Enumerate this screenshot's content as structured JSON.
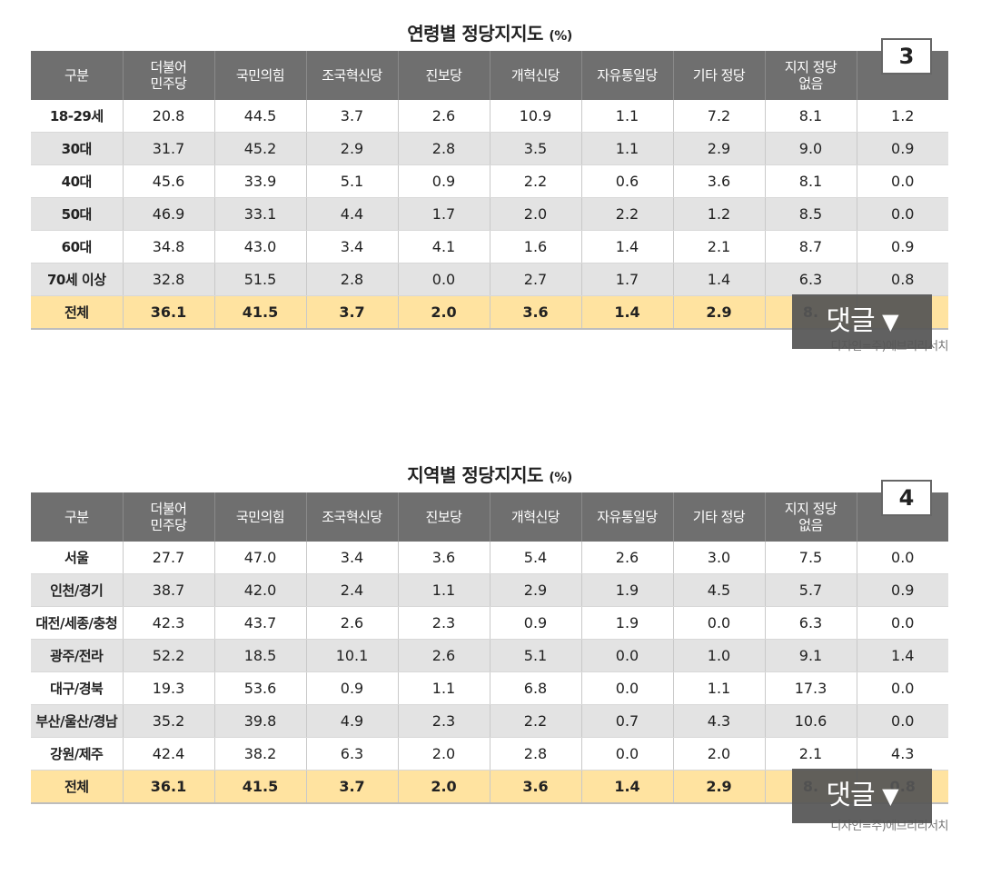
{
  "tables": [
    {
      "title": "연령별 정당지지도",
      "unit": "(%)",
      "badge": "3",
      "headers": [
        "구분",
        "더불어\n민주당",
        "국민의힘",
        "조국혁신당",
        "진보당",
        "개혁신당",
        "자유통일당",
        "기타 정당",
        "지지 정당\n없음",
        ""
      ],
      "rows": [
        [
          "18-29세",
          "20.8",
          "44.5",
          "3.7",
          "2.6",
          "10.9",
          "1.1",
          "7.2",
          "8.1",
          "1.2"
        ],
        [
          "30대",
          "31.7",
          "45.2",
          "2.9",
          "2.8",
          "3.5",
          "1.1",
          "2.9",
          "9.0",
          "0.9"
        ],
        [
          "40대",
          "45.6",
          "33.9",
          "5.1",
          "0.9",
          "2.2",
          "0.6",
          "3.6",
          "8.1",
          "0.0"
        ],
        [
          "50대",
          "46.9",
          "33.1",
          "4.4",
          "1.7",
          "2.0",
          "2.2",
          "1.2",
          "8.5",
          "0.0"
        ],
        [
          "60대",
          "34.8",
          "43.0",
          "3.4",
          "4.1",
          "1.6",
          "1.4",
          "2.1",
          "8.7",
          "0.9"
        ],
        [
          "70세 이상",
          "32.8",
          "51.5",
          "2.8",
          "0.0",
          "2.7",
          "1.7",
          "1.4",
          "6.3",
          "0.8"
        ]
      ],
      "total": [
        "전체",
        "36.1",
        "41.5",
        "3.7",
        "2.0",
        "3.6",
        "1.4",
        "2.9",
        "8.",
        ""
      ],
      "credit": "디자인=주)에브리리서치"
    },
    {
      "title": "지역별 정당지지도",
      "unit": "(%)",
      "badge": "4",
      "headers": [
        "구분",
        "더불어\n민주당",
        "국민의힘",
        "조국혁신당",
        "진보당",
        "개혁신당",
        "자유통일당",
        "기타 정당",
        "지지 정당\n없음",
        ""
      ],
      "rows": [
        [
          "서울",
          "27.7",
          "47.0",
          "3.4",
          "3.6",
          "5.4",
          "2.6",
          "3.0",
          "7.5",
          "0.0"
        ],
        [
          "인천/경기",
          "38.7",
          "42.0",
          "2.4",
          "1.1",
          "2.9",
          "1.9",
          "4.5",
          "5.7",
          "0.9"
        ],
        [
          "대전/세종/충청",
          "42.3",
          "43.7",
          "2.6",
          "2.3",
          "0.9",
          "1.9",
          "0.0",
          "6.3",
          "0.0"
        ],
        [
          "광주/전라",
          "52.2",
          "18.5",
          "10.1",
          "2.6",
          "5.1",
          "0.0",
          "1.0",
          "9.1",
          "1.4"
        ],
        [
          "대구/경북",
          "19.3",
          "53.6",
          "0.9",
          "1.1",
          "6.8",
          "0.0",
          "1.1",
          "17.3",
          "0.0"
        ],
        [
          "부산/울산/경남",
          "35.2",
          "39.8",
          "4.9",
          "2.3",
          "2.2",
          "0.7",
          "4.3",
          "10.6",
          "0.0"
        ],
        [
          "강원/제주",
          "42.4",
          "38.2",
          "6.3",
          "2.0",
          "2.8",
          "0.0",
          "2.0",
          "2.1",
          "4.3"
        ]
      ],
      "total": [
        "전체",
        "36.1",
        "41.5",
        "3.7",
        "2.0",
        "3.6",
        "1.4",
        "2.9",
        "8.",
        "0.8"
      ],
      "credit": "디자인=주)에브리리서치"
    }
  ],
  "comment_button": {
    "label": "댓글",
    "arrow": "▼"
  },
  "colors": {
    "header_bg": "#6f6f6f",
    "alt_row": "#e3e3e3",
    "total_row": "#ffe3a0"
  }
}
